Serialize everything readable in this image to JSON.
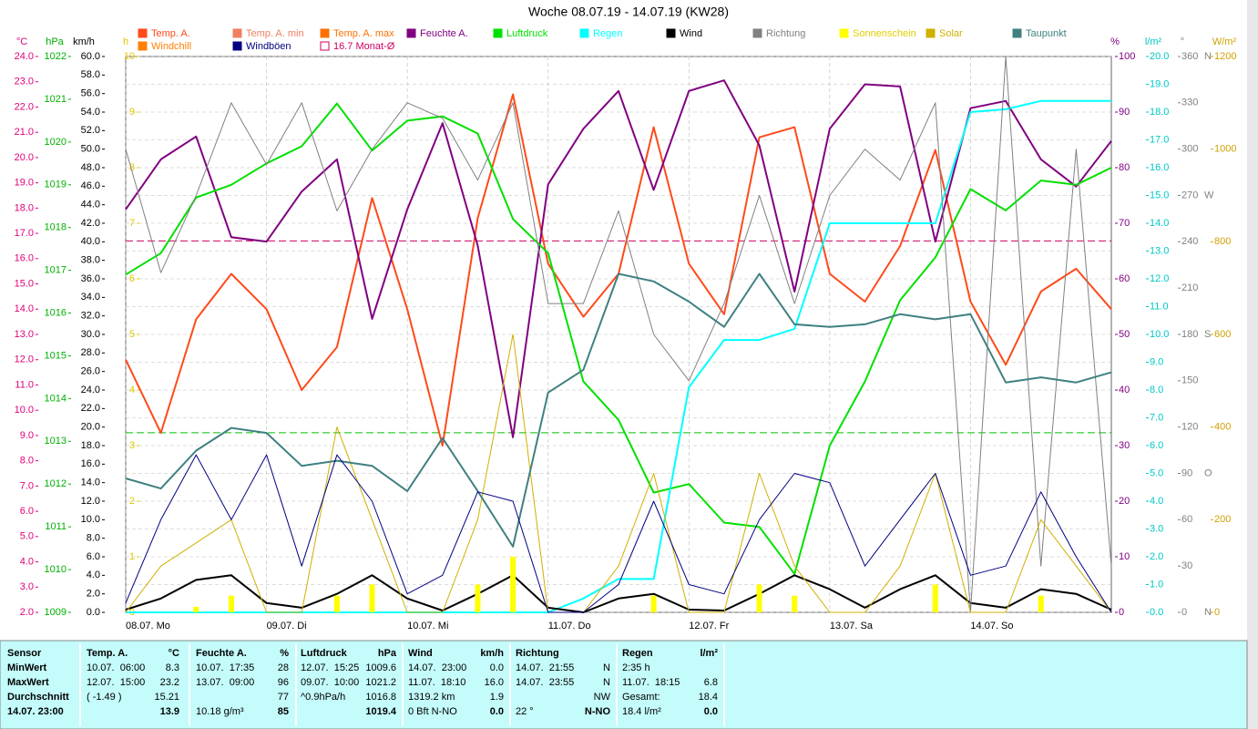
{
  "chart_data": {
    "type": "line",
    "title": "Woche 08.07.19 - 14.07.19 (KW28)",
    "x": [
      0,
      6,
      12,
      18,
      24,
      30,
      36,
      42,
      48,
      54,
      60,
      66,
      72,
      78,
      84,
      90,
      96,
      102,
      108,
      114,
      120,
      126,
      132,
      138,
      144,
      150,
      156,
      162,
      168
    ],
    "xlim": [
      0,
      168
    ],
    "xticks": [
      {
        "value": 0,
        "label": "08.07. Mo"
      },
      {
        "value": 24,
        "label": "09.07. Di"
      },
      {
        "value": 48,
        "label": "10.07. Mi"
      },
      {
        "value": 72,
        "label": "11.07. Do"
      },
      {
        "value": 96,
        "label": "12.07. Fr"
      },
      {
        "value": 120,
        "label": "13.07. Sa"
      },
      {
        "value": 144,
        "label": "14.07. So"
      }
    ],
    "grid": true,
    "axes": {
      "temp": {
        "label": "°C",
        "color": "#e0007a",
        "lim": [
          2,
          24
        ],
        "ticks": [
          {
            "value": 2,
            "label": "2.0"
          },
          {
            "value": 3,
            "label": "3.0"
          },
          {
            "value": 4,
            "label": "4.0"
          },
          {
            "value": 5,
            "label": "5.0"
          },
          {
            "value": 6,
            "label": "6.0"
          },
          {
            "value": 7,
            "label": "7.0"
          },
          {
            "value": 8,
            "label": "8.0"
          },
          {
            "value": 9,
            "label": "9.0"
          },
          {
            "value": 10,
            "label": "10.0"
          },
          {
            "value": 11,
            "label": "11.0"
          },
          {
            "value": 12,
            "label": "12.0"
          },
          {
            "value": 13,
            "label": "13.0"
          },
          {
            "value": 14,
            "label": "14.0"
          },
          {
            "value": 15,
            "label": "15.0"
          },
          {
            "value": 16,
            "label": "16.0"
          },
          {
            "value": 17,
            "label": "17.0"
          },
          {
            "value": 18,
            "label": "18.0"
          },
          {
            "value": 19,
            "label": "19.0"
          },
          {
            "value": 20,
            "label": "20.0"
          },
          {
            "value": 21,
            "label": "21.0"
          },
          {
            "value": 22,
            "label": "22.0"
          },
          {
            "value": 23,
            "label": "23.0"
          },
          {
            "value": 24,
            "label": "24.0"
          }
        ]
      },
      "hpa": {
        "label": "hPa",
        "color": "#00b000",
        "lim": [
          1009,
          1022
        ],
        "ticks": [
          1009,
          1010,
          1011,
          1012,
          1013,
          1014,
          1015,
          1016,
          1017,
          1018,
          1019,
          1020,
          1021,
          1022
        ]
      },
      "kmh": {
        "label": "km/h",
        "color": "#000000",
        "lim": [
          0,
          60
        ],
        "ticks": [
          {
            "value": 0,
            "label": "0.0"
          },
          {
            "value": 2,
            "label": "2.0"
          },
          {
            "value": 4,
            "label": "4.0"
          },
          {
            "value": 6,
            "label": "6.0"
          },
          {
            "value": 8,
            "label": "8.0"
          },
          {
            "value": 10,
            "label": "10.0"
          },
          {
            "value": 12,
            "label": "12.0"
          },
          {
            "value": 14,
            "label": "14.0"
          },
          {
            "value": 16,
            "label": "16.0"
          },
          {
            "value": 18,
            "label": "18.0"
          },
          {
            "value": 20,
            "label": "20.0"
          },
          {
            "value": 22,
            "label": "22.0"
          },
          {
            "value": 24,
            "label": "24.0"
          },
          {
            "value": 26,
            "label": "26.0"
          },
          {
            "value": 28,
            "label": "28.0"
          },
          {
            "value": 30,
            "label": "30.0"
          },
          {
            "value": 32,
            "label": "32.0"
          },
          {
            "value": 34,
            "label": "34.0"
          },
          {
            "value": 36,
            "label": "36.0"
          },
          {
            "value": 38,
            "label": "38.0"
          },
          {
            "value": 40,
            "label": "40.0"
          },
          {
            "value": 42,
            "label": "42.0"
          },
          {
            "value": 44,
            "label": "44.0"
          },
          {
            "value": 46,
            "label": "46.0"
          },
          {
            "value": 48,
            "label": "48.0"
          },
          {
            "value": 50,
            "label": "50.0"
          },
          {
            "value": 52,
            "label": "52.0"
          },
          {
            "value": 54,
            "label": "54.0"
          },
          {
            "value": 56,
            "label": "56.0"
          },
          {
            "value": 58,
            "label": "58.0"
          },
          {
            "value": 60,
            "label": "60.0"
          }
        ]
      },
      "h": {
        "label": "h",
        "color": "#e0c800",
        "lim": [
          0,
          10
        ],
        "ticks": [
          0,
          1,
          2,
          3,
          4,
          5,
          6,
          7,
          8,
          9,
          10
        ]
      },
      "pct": {
        "label": "%",
        "color": "#800080",
        "lim": [
          0,
          100
        ],
        "ticks": [
          0,
          10,
          20,
          30,
          40,
          50,
          60,
          70,
          80,
          90,
          100
        ]
      },
      "rain": {
        "label": "l/m²",
        "color": "#00c8c8",
        "lim": [
          0,
          20
        ],
        "ticks": [
          {
            "value": 0,
            "label": "0.0"
          },
          {
            "value": 1,
            "label": "1.0"
          },
          {
            "value": 2,
            "label": "2.0"
          },
          {
            "value": 3,
            "label": "3.0"
          },
          {
            "value": 4,
            "label": "4.0"
          },
          {
            "value": 5,
            "label": "5.0"
          },
          {
            "value": 6,
            "label": "6.0"
          },
          {
            "value": 7,
            "label": "7.0"
          },
          {
            "value": 8,
            "label": "8.0"
          },
          {
            "value": 9,
            "label": "9.0"
          },
          {
            "value": 10,
            "label": "10.0"
          },
          {
            "value": 11,
            "label": "11.0"
          },
          {
            "value": 12,
            "label": "12.0"
          },
          {
            "value": 13,
            "label": "13.0"
          },
          {
            "value": 14,
            "label": "14.0"
          },
          {
            "value": 15,
            "label": "15.0"
          },
          {
            "value": 16,
            "label": "16.0"
          },
          {
            "value": 17,
            "label": "17.0"
          },
          {
            "value": 18,
            "label": "18.0"
          },
          {
            "value": 19,
            "label": "19.0"
          },
          {
            "value": 20,
            "label": "20.0"
          }
        ]
      },
      "dir": {
        "label": "°",
        "color": "#808080",
        "lim": [
          0,
          360
        ],
        "ticks": [
          0,
          30,
          60,
          90,
          120,
          150,
          180,
          210,
          240,
          270,
          300,
          330,
          360
        ],
        "letters": [
          {
            "value": 0,
            "label": "N"
          },
          {
            "value": 90,
            "label": "O"
          },
          {
            "value": 180,
            "label": "S"
          },
          {
            "value": 270,
            "label": "W"
          },
          {
            "value": 360,
            "label": "N"
          }
        ]
      },
      "wm2": {
        "label": "W/m²",
        "color": "#d0a000",
        "lim": [
          0,
          1200
        ],
        "ticks": [
          0,
          200,
          400,
          600,
          800,
          1000,
          1200
        ]
      }
    },
    "series": [
      {
        "name": "Temp. A.",
        "color": "#ff4a1a",
        "axis": "temp",
        "values": [
          12.0,
          9.1,
          13.6,
          15.4,
          14.0,
          10.8,
          12.5,
          18.4,
          14.0,
          8.6,
          17.6,
          22.5,
          15.8,
          13.7,
          15.4,
          21.2,
          15.8,
          13.8,
          20.8,
          21.2,
          15.4,
          14.3,
          16.5,
          20.3,
          14.3,
          11.8,
          14.7,
          15.6,
          14.0
        ]
      },
      {
        "name": "Feuchte A.",
        "color": "#800080",
        "axis": "pct",
        "values": [
          72.5,
          81.5,
          85.6,
          67.5,
          66.7,
          75.7,
          81.5,
          52.8,
          72.5,
          88.0,
          66.0,
          31.5,
          77.0,
          87.0,
          93.8,
          76.0,
          93.8,
          95.7,
          84.0,
          57.7,
          87.0,
          95.0,
          94.6,
          66.7,
          90.7,
          92.0,
          81.5,
          76.6,
          84.8
        ]
      },
      {
        "name": "Luftdruck",
        "color": "#00e000",
        "axis": "hpa",
        "values": [
          1016.9,
          1017.4,
          1018.7,
          1019.0,
          1019.5,
          1019.9,
          1020.9,
          1019.8,
          1020.5,
          1020.6,
          1020.2,
          1018.2,
          1017.4,
          1014.4,
          1013.5,
          1011.8,
          1012.0,
          1011.1,
          1011.0,
          1009.9,
          1012.9,
          1014.4,
          1016.3,
          1017.3,
          1018.9,
          1018.4,
          1019.1,
          1019.0,
          1019.4
        ]
      },
      {
        "name": "Regen",
        "color": "#00ffff",
        "axis": "rain",
        "values": [
          0,
          0,
          0,
          0,
          0,
          0,
          0,
          0,
          0,
          0,
          0,
          0,
          0,
          0.5,
          1.2,
          1.2,
          8.1,
          9.8,
          9.8,
          10.2,
          14.0,
          14.0,
          14.0,
          14.0,
          18.0,
          18.1,
          18.4,
          18.4,
          18.4
        ]
      },
      {
        "name": "Wind",
        "color": "#000000",
        "axis": "kmh",
        "values": [
          0.3,
          1.5,
          3.5,
          4.0,
          1.0,
          0.5,
          2.0,
          4.0,
          1.5,
          0.2,
          2.0,
          4.0,
          0.5,
          0,
          1.5,
          2.0,
          0.3,
          0.2,
          2.0,
          4.0,
          2.5,
          0.5,
          2.5,
          4.0,
          1.0,
          0.5,
          2.5,
          2.0,
          0.3
        ]
      },
      {
        "name": "Richtung",
        "color": "#808080",
        "axis": "dir",
        "values": [
          300,
          220,
          270,
          330,
          290,
          330,
          260,
          300,
          330,
          320,
          280,
          330,
          200,
          200,
          260,
          180,
          150,
          200,
          270,
          200,
          270,
          300,
          280,
          330,
          0,
          360,
          30,
          300,
          30
        ]
      },
      {
        "name": "Sonnenschein",
        "color": "#ffff00",
        "axis": "h",
        "values": [
          0,
          0,
          0.1,
          0.3,
          0,
          0,
          0.3,
          0.5,
          0,
          0,
          0.5,
          1.0,
          0,
          0,
          0,
          0.3,
          0,
          0,
          0.5,
          0.3,
          0,
          0,
          0,
          0.5,
          0,
          0,
          0.3,
          0,
          0
        ]
      },
      {
        "name": "Solar",
        "color": "#d0b000",
        "axis": "wm2",
        "values": [
          0,
          100,
          150,
          200,
          0,
          0,
          400,
          200,
          0,
          0,
          200,
          600,
          0,
          0,
          100,
          300,
          0,
          0,
          300,
          100,
          0,
          0,
          100,
          300,
          0,
          0,
          200,
          100,
          0
        ]
      },
      {
        "name": "Taupunkt",
        "color": "#408080",
        "axis": "temp",
        "values": [
          7.3,
          6.9,
          8.4,
          9.3,
          9.1,
          7.8,
          8.0,
          7.8,
          6.8,
          8.9,
          6.8,
          4.6,
          10.7,
          11.6,
          15.4,
          15.1,
          14.3,
          13.3,
          15.4,
          13.4,
          13.3,
          13.4,
          13.8,
          13.6,
          13.8,
          11.1,
          11.3,
          11.1,
          11.5
        ]
      },
      {
        "name": "Windböen",
        "color": "#000080",
        "axis": "kmh",
        "values": [
          1,
          10,
          17,
          10,
          17,
          5,
          17,
          12,
          2,
          4,
          13,
          12,
          0,
          0,
          3,
          12,
          3,
          2,
          10,
          15,
          14,
          5,
          10,
          15,
          4,
          5,
          13,
          6,
          0
        ]
      }
    ],
    "legend_only": [
      {
        "name": "Temp. A. min",
        "color": "#f08060"
      },
      {
        "name": "Temp. A. max",
        "color": "#ff7000"
      },
      {
        "name": "Windchill",
        "color": "#ff8000"
      }
    ],
    "reference_lines": [
      {
        "name": "16.7 Monat-Ø",
        "value": 16.7,
        "axis": "temp",
        "color": "#d00060"
      },
      {
        "value": 1013.2,
        "axis": "hpa",
        "color": "#00c000"
      }
    ]
  },
  "table": {
    "columns": [
      {
        "header": "Sensor",
        "rows": [
          [
            "MinWert",
            null
          ],
          [
            "MaxWert",
            null
          ],
          [
            "Durchschnitt",
            null
          ],
          [
            "14.07. 23:00",
            null
          ]
        ]
      },
      {
        "header": "Temp. A.",
        "unit": "°C",
        "rows": [
          [
            "10.07.  06:00",
            "8.3"
          ],
          [
            "12.07.  15:00",
            "23.2"
          ],
          [
            "( -1.49 )",
            "15.21"
          ],
          [
            null,
            "13.9"
          ]
        ]
      },
      {
        "header": "Feuchte A.",
        "unit": "%",
        "rows": [
          [
            "10.07.  17:35",
            "28"
          ],
          [
            "13.07.  09:00",
            "96"
          ],
          [
            null,
            "77"
          ],
          [
            "10.18 g/m³",
            "85"
          ]
        ]
      },
      {
        "header": "Luftdruck",
        "unit": "hPa",
        "rows": [
          [
            "12.07.  15:25",
            "1009.6"
          ],
          [
            "09.07.  10:00",
            "1021.2"
          ],
          [
            "^0.9hPa/h",
            "1016.8"
          ],
          [
            null,
            "1019.4"
          ]
        ]
      },
      {
        "header": "Wind",
        "unit": "km/h",
        "rows": [
          [
            "14.07.  23:00",
            "0.0"
          ],
          [
            "11.07.  18:10",
            "16.0"
          ],
          [
            "1319.2 km",
            "1.9"
          ],
          [
            "0 Bft N-NO",
            "0.0"
          ]
        ]
      },
      {
        "header": "Richtung",
        "rows": [
          [
            "14.07.  21:55",
            "N"
          ],
          [
            "14.07.  23:55",
            "N"
          ],
          [
            null,
            "NW"
          ],
          [
            "22 °",
            "N-NO"
          ]
        ]
      },
      {
        "header": "Regen",
        "unit": "l/m²",
        "rows": [
          [
            "2:35 h",
            null
          ],
          [
            "11.07.  18:15",
            "6.8"
          ],
          [
            "Gesamt:",
            "18.4"
          ],
          [
            "18.4 l/m²",
            "0.0"
          ]
        ]
      }
    ]
  }
}
